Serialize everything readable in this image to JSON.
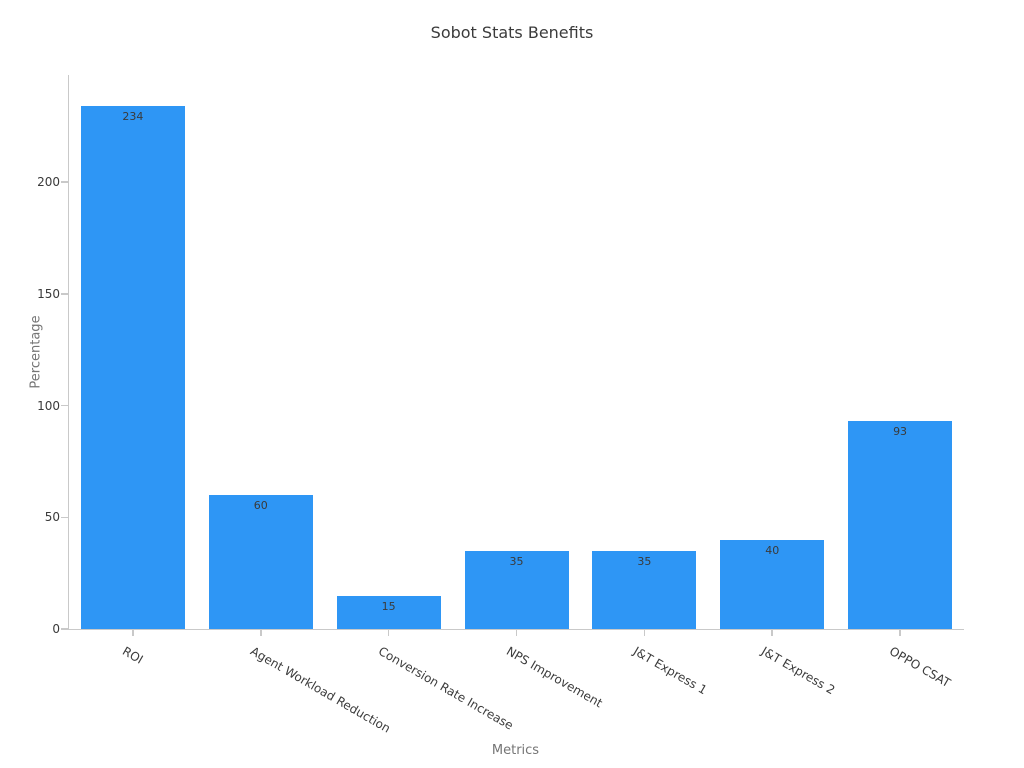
{
  "chart_data": {
    "type": "bar",
    "title": "Sobot Stats Benefits",
    "categories": [
      "ROI",
      "Agent Workload Reduction",
      "Conversion Rate Increase",
      "NPS Improvement",
      "J&T Express 1",
      "J&T Express 2",
      "OPPO CSAT"
    ],
    "values": [
      234,
      60,
      15,
      35,
      35,
      40,
      93
    ],
    "bar_value_labels": [
      "234",
      "60",
      "15",
      "35",
      "35",
      "40",
      "93"
    ],
    "xlabel": "Metrics",
    "ylabel": "Percentage",
    "ylim": [
      0,
      248
    ],
    "yticks": [
      0,
      50,
      100,
      150,
      200
    ],
    "grid": false,
    "legend": "none",
    "bar_color": "#2E96F5",
    "bar_label_color": "#3A3A3A",
    "axis_spine_color": "#C9C9C9",
    "tick_label_color": "#3A3A3A",
    "axis_label_color": "#757575",
    "title_color": "#3B3B3B",
    "background_color": "#FFFFFF"
  }
}
